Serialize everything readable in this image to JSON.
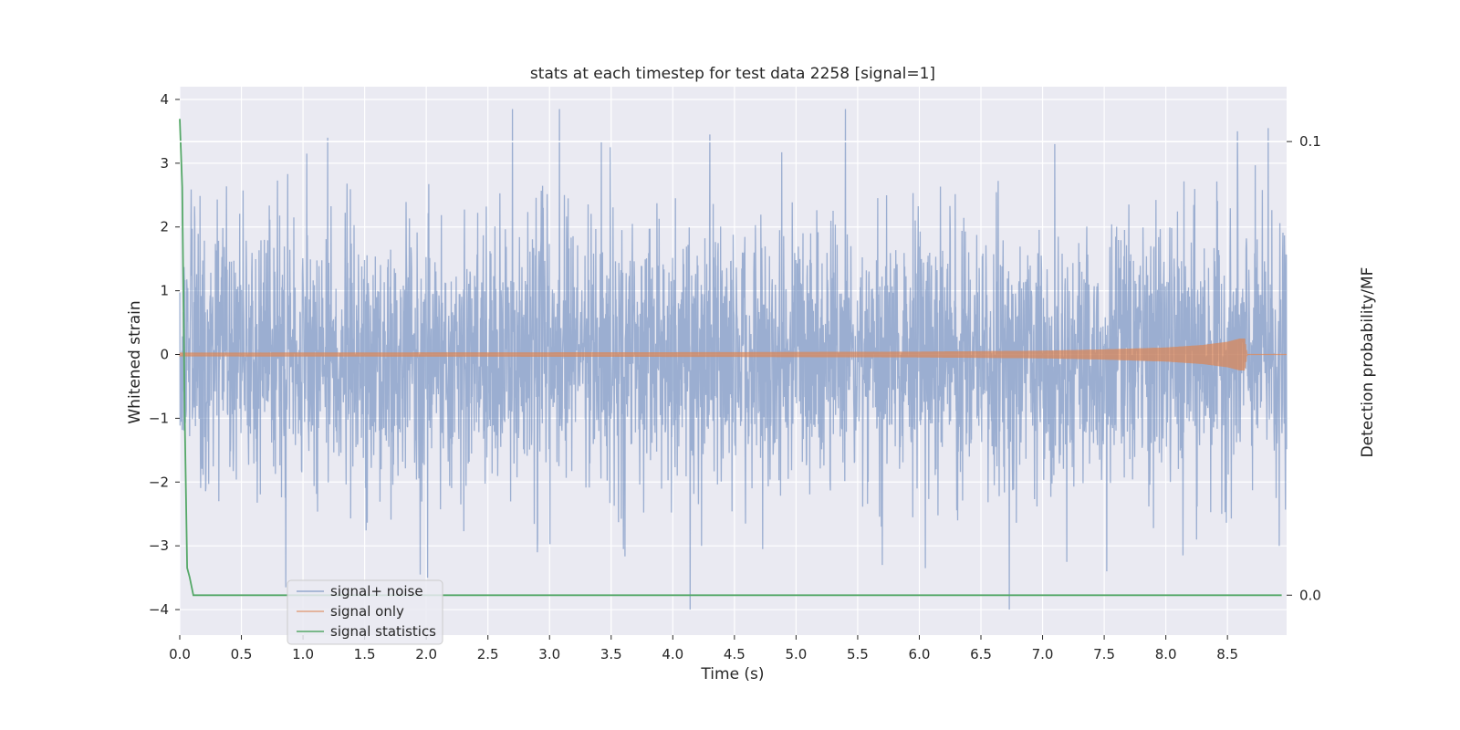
{
  "chart_data": {
    "type": "line",
    "title": "stats at each timestep for test data 2258 [signal=1]",
    "xlabel": "Time (s)",
    "ylabel": "Whitened strain",
    "y2label": "Detection probability/MF",
    "xlim": [
      0.0,
      8.98
    ],
    "ylim": [
      -4.4,
      4.2
    ],
    "y2lim": [
      -0.0088,
      0.1121
    ],
    "x_ticks": [
      0.0,
      0.5,
      1.0,
      1.5,
      2.0,
      2.5,
      3.0,
      3.5,
      4.0,
      4.5,
      5.0,
      5.5,
      6.0,
      6.5,
      7.0,
      7.5,
      8.0,
      8.5
    ],
    "x_tick_labels": [
      "0.0",
      "0.5",
      "1.0",
      "1.5",
      "2.0",
      "2.5",
      "3.0",
      "3.5",
      "4.0",
      "4.5",
      "5.0",
      "5.5",
      "6.0",
      "6.5",
      "7.0",
      "7.5",
      "8.0",
      "8.5"
    ],
    "y_ticks": [
      4,
      3,
      2,
      1,
      0,
      -1,
      -2,
      -3,
      -4
    ],
    "y_tick_labels": [
      "4",
      "3",
      "2",
      "1",
      "0",
      "−1",
      "−2",
      "−3",
      "−4"
    ],
    "y2_ticks": [
      0.1,
      0.0
    ],
    "y2_tick_labels": [
      "0.1",
      "0.0"
    ],
    "grid": true,
    "legend_position": "lower-left",
    "series": [
      {
        "name": "signal+ noise",
        "color": "#4c72b0",
        "axis": "left",
        "description_values": {
          "t_start": 0.0,
          "t_end": 8.98,
          "amplitude_range": [
            -4.0,
            3.85
          ],
          "typical_std": 1.0
        },
        "spikes": [
          {
            "x": 0.86,
            "y": -3.65
          },
          {
            "x": 1.03,
            "y": 3.15
          },
          {
            "x": 1.2,
            "y": 3.4
          },
          {
            "x": 1.95,
            "y": -3.45
          },
          {
            "x": 2.01,
            "y": -3.5
          },
          {
            "x": 2.7,
            "y": 3.85
          },
          {
            "x": 2.9,
            "y": -3.1
          },
          {
            "x": 3.08,
            "y": 3.85
          },
          {
            "x": 3.42,
            "y": 3.35
          },
          {
            "x": 3.6,
            "y": -3.05
          },
          {
            "x": 4.14,
            "y": -4.0
          },
          {
            "x": 4.3,
            "y": 3.45
          },
          {
            "x": 4.73,
            "y": -3.05
          },
          {
            "x": 5.4,
            "y": 3.85
          },
          {
            "x": 5.7,
            "y": -3.3
          },
          {
            "x": 6.05,
            "y": -3.35
          },
          {
            "x": 6.73,
            "y": -4.0
          },
          {
            "x": 7.1,
            "y": 3.3
          },
          {
            "x": 7.52,
            "y": -3.4
          },
          {
            "x": 8.14,
            "y": -3.15
          },
          {
            "x": 8.25,
            "y": -2.9
          },
          {
            "x": 8.58,
            "y": 3.5
          },
          {
            "x": 8.83,
            "y": 3.55
          },
          {
            "x": 8.92,
            "y": -3.0
          }
        ]
      },
      {
        "name": "signal only",
        "color": "#dd8452",
        "axis": "left",
        "envelope": [
          {
            "x": 0.0,
            "amp": 0.03
          },
          {
            "x": 4.0,
            "amp": 0.035
          },
          {
            "x": 6.0,
            "amp": 0.045
          },
          {
            "x": 7.0,
            "amp": 0.06
          },
          {
            "x": 7.5,
            "amp": 0.08
          },
          {
            "x": 8.0,
            "amp": 0.11
          },
          {
            "x": 8.3,
            "amp": 0.15
          },
          {
            "x": 8.5,
            "amp": 0.2
          },
          {
            "x": 8.6,
            "amp": 0.25
          },
          {
            "x": 8.64,
            "amp": 0.25
          },
          {
            "x": 8.66,
            "amp": 0.0
          },
          {
            "x": 8.98,
            "amp": 0.0
          }
        ]
      },
      {
        "name": "signal statistics",
        "color": "#55a868",
        "axis": "right",
        "x": [
          0.0,
          0.02,
          0.04,
          0.06,
          0.08,
          0.11,
          0.5,
          1.0,
          2.0,
          3.0,
          4.0,
          5.0,
          6.0,
          7.0,
          8.0,
          8.5,
          8.94
        ],
        "values": [
          0.105,
          0.09,
          0.04,
          0.006,
          0.004,
          0.0,
          0.0,
          0.0,
          0.0,
          0.0,
          0.0,
          0.0,
          0.0,
          0.0,
          0.0,
          0.0,
          0.0
        ]
      }
    ],
    "hline_right_axis": 0.1
  }
}
